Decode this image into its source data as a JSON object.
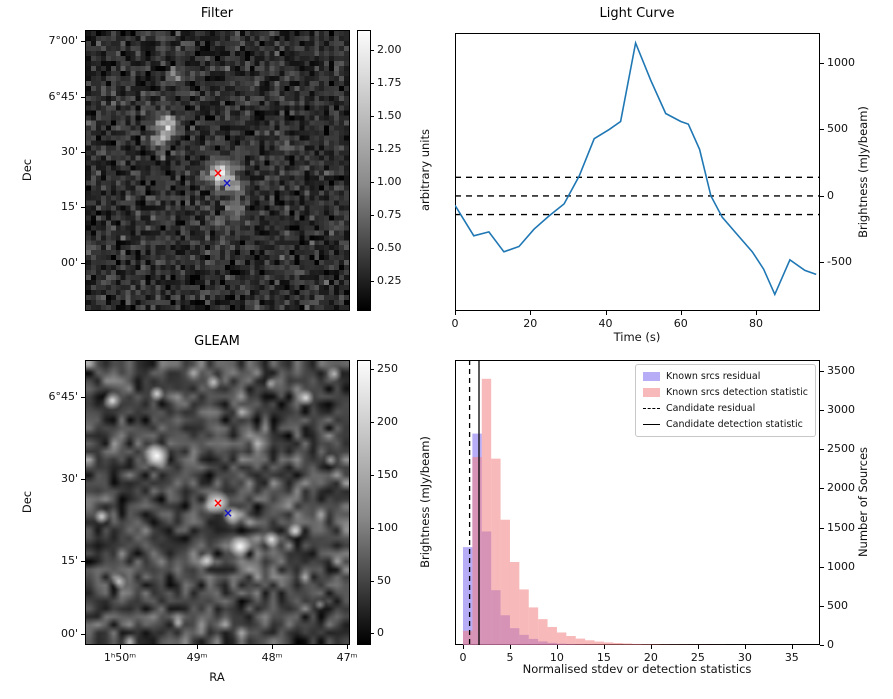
{
  "figure": {
    "background": "#ffffff"
  },
  "filter_panel": {
    "title": "Filter",
    "ylabel": "Dec",
    "yticks": [
      "7°00'",
      "6°45'",
      "30'",
      "15'",
      "00'"
    ],
    "colorbar": {
      "label": "arbitrary units",
      "ticks": [
        "2.00",
        "1.75",
        "1.50",
        "1.25",
        "1.00",
        "0.75",
        "0.50",
        "0.25"
      ],
      "vmin": 0.02,
      "vmax": 2.15
    },
    "markers": [
      {
        "name": "candidate",
        "symbol": "×",
        "color": "#ff0000"
      },
      {
        "name": "catalogue",
        "symbol": "×",
        "color": "#1515c8"
      }
    ]
  },
  "gleam_panel": {
    "title": "GLEAM",
    "ylabel": "Dec",
    "xlabel": "RA",
    "yticks": [
      "6°45'",
      "30'",
      "15'",
      "00'"
    ],
    "xticks": [
      "1ʰ50ᵐ",
      "49ᵐ",
      "48ᵐ",
      "47ᵐ"
    ],
    "colorbar": {
      "label": "Brightness (mJy/beam)",
      "ticks": [
        "250",
        "200",
        "150",
        "100",
        "50",
        "0"
      ],
      "vmin": -10.9,
      "vmax": 258.6
    },
    "markers": [
      {
        "name": "candidate",
        "symbol": "×",
        "color": "#ff0000"
      },
      {
        "name": "catalogue",
        "symbol": "×",
        "color": "#1515c8"
      }
    ]
  },
  "chart_data": [
    {
      "type": "line",
      "title": "Light Curve",
      "xlabel": "Time (s)",
      "ylabel": "Brightness (mJy/beam)",
      "color": "#1f77b4",
      "xlim": [
        0,
        97
      ],
      "ylim": [
        -865,
        1225
      ],
      "xticks": [
        0,
        20,
        40,
        60,
        80
      ],
      "yticks": [
        1000,
        500,
        0,
        -500
      ],
      "x": [
        0,
        5,
        9,
        13,
        17,
        21,
        25,
        29,
        33,
        37,
        41,
        44,
        48,
        52,
        56,
        60,
        62,
        65,
        68,
        71,
        75,
        79,
        82,
        85,
        89,
        93,
        96
      ],
      "y": [
        -70,
        -300,
        -270,
        -420,
        -380,
        -250,
        -150,
        -60,
        150,
        430,
        500,
        560,
        1150,
        870,
        620,
        560,
        540,
        350,
        0,
        -160,
        -290,
        -420,
        -550,
        -740,
        -480,
        -560,
        -590
      ],
      "dashed_hlines": [
        140,
        0,
        -140
      ],
      "grid": false
    },
    {
      "type": "histogram",
      "xlabel": "Normalised stdev or detection statistics",
      "ylabel": "Number of Sources",
      "xlim": [
        -0.85,
        38
      ],
      "ylim": [
        0,
        3640
      ],
      "xticks": [
        0,
        5,
        10,
        15,
        20,
        25,
        30,
        35
      ],
      "yticks": [
        3500,
        3000,
        2500,
        2000,
        1500,
        1000,
        500,
        0
      ],
      "bin_start": 0,
      "bin_width": 1,
      "series": [
        {
          "name": "Known srcs residual",
          "color": "#7b68ee",
          "alpha": 0.55,
          "values": [
            1250,
            2700,
            1450,
            700,
            380,
            215,
            130,
            78,
            46,
            28,
            17,
            10,
            6,
            4,
            3,
            2,
            1,
            1,
            1,
            0,
            0,
            0,
            0,
            0,
            0,
            0,
            0,
            0,
            0,
            0,
            0,
            0,
            0,
            0,
            0,
            0
          ]
        },
        {
          "name": "Known srcs detection statistic",
          "color": "#f08080",
          "alpha": 0.55,
          "values": [
            180,
            2400,
            3400,
            2380,
            1600,
            1060,
            710,
            480,
            330,
            230,
            160,
            115,
            82,
            60,
            44,
            33,
            25,
            19,
            14,
            11,
            8,
            6,
            5,
            4,
            3,
            3,
            2,
            2,
            1,
            1,
            1,
            1,
            0,
            0,
            0,
            0
          ]
        }
      ],
      "vlines": [
        {
          "name": "Candidate residual",
          "style": "dashed",
          "x": 0.7
        },
        {
          "name": "Candidate detection statistic",
          "style": "solid",
          "x": 1.7
        }
      ],
      "legend_position": "upper right"
    }
  ]
}
